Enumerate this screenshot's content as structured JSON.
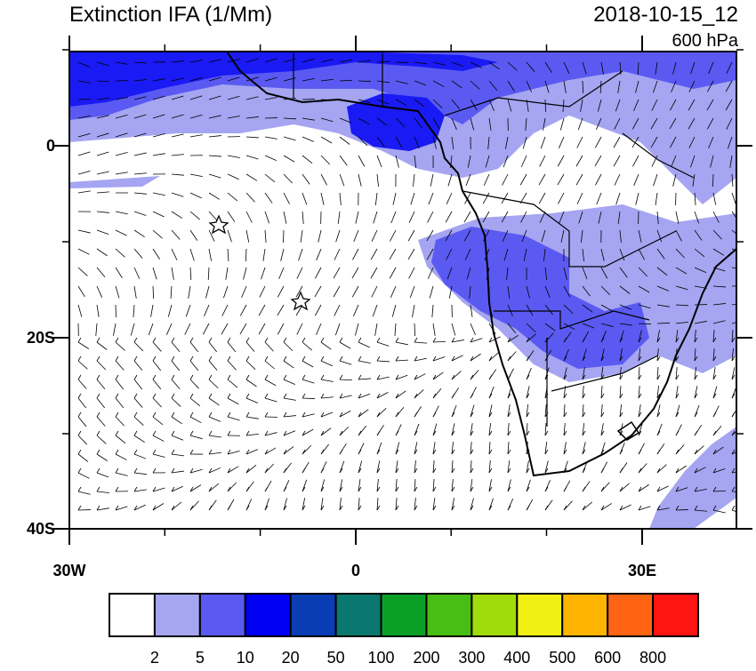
{
  "header": {
    "title": "Extinction IFA (1/Mm)",
    "time": "2018-10-15_12",
    "level": "600 hPa"
  },
  "axes": {
    "y_labels": [
      "0",
      "20S",
      "40S"
    ],
    "x_labels": [
      "30W",
      "0",
      "30E"
    ]
  },
  "colorbar": {
    "colors": [
      "#ffffff",
      "#a5a5f2",
      "#5a5af2",
      "#0000f5",
      "#0a3cb4",
      "#0a786e",
      "#0aa028",
      "#46be14",
      "#a0dc0a",
      "#f0f014",
      "#ffb400",
      "#ff6414",
      "#ff1414"
    ],
    "labels": [
      "2",
      "5",
      "10",
      "20",
      "50",
      "100",
      "200",
      "300",
      "400",
      "500",
      "600",
      "800"
    ]
  }
}
